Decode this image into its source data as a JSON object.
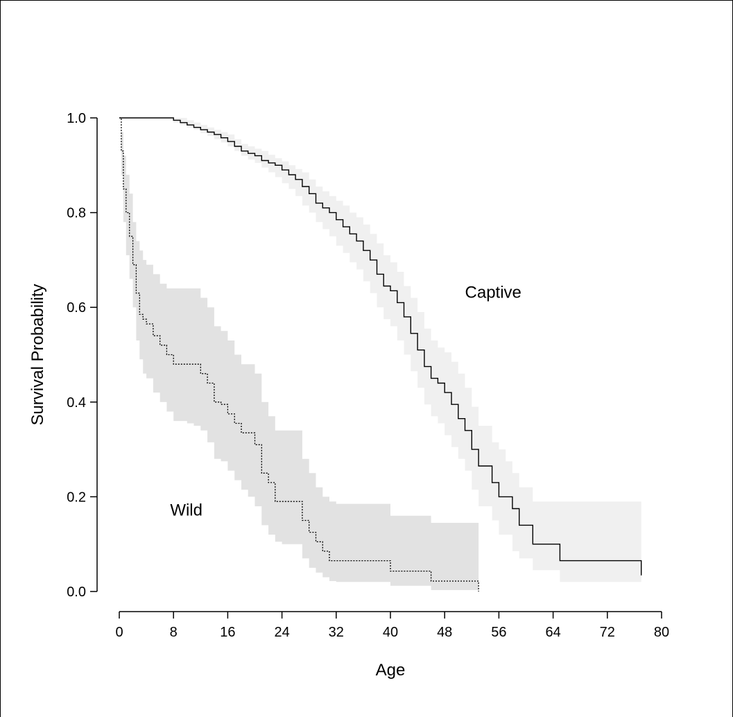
{
  "chart_data": {
    "type": "line",
    "title": "",
    "xlabel": "Age",
    "ylabel": "Survival Probability",
    "xlim": [
      0,
      80
    ],
    "ylim": [
      0,
      1
    ],
    "x_ticks": [
      "0",
      "8",
      "16",
      "24",
      "32",
      "40",
      "48",
      "56",
      "64",
      "72",
      "80"
    ],
    "y_ticks": [
      "0.0",
      "0.2",
      "0.4",
      "0.6",
      "0.8",
      "1.0"
    ],
    "grid": false,
    "annotations": [
      {
        "text": "Captive",
        "series": "Captive",
        "x": 51,
        "y": 0.62
      },
      {
        "text": "Wild",
        "series": "Wild",
        "x": 7.5,
        "y": 0.16
      }
    ],
    "series": [
      {
        "name": "Captive",
        "line_style": "solid",
        "line_color": "#000000",
        "band_color": "#f0f0f0",
        "x": [
          0,
          7,
          8,
          9,
          10,
          11,
          12,
          13,
          14,
          15,
          16,
          17,
          18,
          19,
          20,
          21,
          22,
          23,
          24,
          25,
          26,
          27,
          28,
          29,
          30,
          31,
          32,
          33,
          34,
          35,
          36,
          37,
          38,
          39,
          40,
          41,
          42,
          43,
          44,
          45,
          46,
          47,
          48,
          49,
          50,
          51,
          52,
          53,
          54,
          55,
          56,
          57,
          58,
          59,
          61,
          65,
          77
        ],
        "y": [
          1.0,
          1.0,
          0.995,
          0.99,
          0.985,
          0.98,
          0.975,
          0.97,
          0.965,
          0.958,
          0.95,
          0.94,
          0.93,
          0.925,
          0.92,
          0.91,
          0.905,
          0.9,
          0.89,
          0.88,
          0.87,
          0.855,
          0.84,
          0.82,
          0.81,
          0.8,
          0.785,
          0.77,
          0.755,
          0.74,
          0.72,
          0.7,
          0.67,
          0.645,
          0.635,
          0.61,
          0.58,
          0.545,
          0.51,
          0.475,
          0.45,
          0.44,
          0.42,
          0.395,
          0.365,
          0.34,
          0.3,
          0.265,
          0.265,
          0.23,
          0.2,
          0.2,
          0.175,
          0.14,
          0.1,
          0.065,
          0.034
        ],
        "lower": [
          1.0,
          1.0,
          0.99,
          0.985,
          0.98,
          0.975,
          0.968,
          0.962,
          0.955,
          0.948,
          0.94,
          0.93,
          0.92,
          0.912,
          0.905,
          0.895,
          0.885,
          0.875,
          0.862,
          0.85,
          0.835,
          0.815,
          0.8,
          0.78,
          0.765,
          0.75,
          0.73,
          0.715,
          0.695,
          0.68,
          0.655,
          0.63,
          0.6,
          0.575,
          0.56,
          0.53,
          0.5,
          0.465,
          0.43,
          0.395,
          0.37,
          0.355,
          0.33,
          0.305,
          0.28,
          0.255,
          0.215,
          0.18,
          0.18,
          0.15,
          0.12,
          0.12,
          0.085,
          0.07,
          0.045,
          0.02,
          0.005
        ],
        "upper": [
          1.0,
          1.0,
          1.0,
          1.0,
          0.995,
          0.99,
          0.985,
          0.98,
          0.975,
          0.97,
          0.965,
          0.955,
          0.945,
          0.94,
          0.935,
          0.93,
          0.922,
          0.915,
          0.908,
          0.9,
          0.892,
          0.885,
          0.87,
          0.855,
          0.845,
          0.835,
          0.825,
          0.815,
          0.8,
          0.79,
          0.775,
          0.755,
          0.735,
          0.71,
          0.695,
          0.675,
          0.645,
          0.62,
          0.59,
          0.555,
          0.53,
          0.515,
          0.505,
          0.485,
          0.46,
          0.43,
          0.39,
          0.35,
          0.35,
          0.315,
          0.3,
          0.275,
          0.25,
          0.22,
          0.19,
          0.19,
          0.19
        ]
      },
      {
        "name": "Wild",
        "line_style": "dotted",
        "line_color": "#000000",
        "band_color": "#e2e2e2",
        "x": [
          0,
          0.3,
          0.6,
          1,
          1.5,
          2,
          2.5,
          3,
          3.5,
          4,
          5,
          6,
          7,
          8,
          9,
          10,
          11,
          12,
          13,
          14,
          15,
          16,
          17,
          18,
          19,
          20,
          21,
          22,
          23,
          24,
          25,
          26,
          27,
          28,
          29,
          30,
          31,
          32,
          40,
          46,
          53
        ],
        "y": [
          1.0,
          0.93,
          0.85,
          0.8,
          0.75,
          0.69,
          0.63,
          0.585,
          0.575,
          0.565,
          0.54,
          0.52,
          0.5,
          0.48,
          0.48,
          0.48,
          0.48,
          0.46,
          0.44,
          0.4,
          0.395,
          0.375,
          0.355,
          0.335,
          0.335,
          0.31,
          0.25,
          0.23,
          0.19,
          0.19,
          0.19,
          0.19,
          0.15,
          0.125,
          0.105,
          0.085,
          0.065,
          0.065,
          0.043,
          0.022,
          0.0
        ],
        "lower": [
          1.0,
          0.88,
          0.78,
          0.71,
          0.66,
          0.6,
          0.53,
          0.49,
          0.46,
          0.45,
          0.42,
          0.4,
          0.38,
          0.36,
          0.36,
          0.355,
          0.35,
          0.34,
          0.315,
          0.28,
          0.275,
          0.255,
          0.235,
          0.215,
          0.2,
          0.18,
          0.14,
          0.12,
          0.105,
          0.1,
          0.1,
          0.1,
          0.07,
          0.05,
          0.04,
          0.03,
          0.022,
          0.02,
          0.012,
          0.003,
          0.0
        ],
        "upper": [
          1.0,
          0.97,
          0.92,
          0.88,
          0.84,
          0.78,
          0.74,
          0.72,
          0.7,
          0.69,
          0.67,
          0.65,
          0.64,
          0.64,
          0.64,
          0.64,
          0.64,
          0.62,
          0.6,
          0.56,
          0.55,
          0.53,
          0.5,
          0.48,
          0.48,
          0.46,
          0.4,
          0.37,
          0.34,
          0.34,
          0.34,
          0.34,
          0.28,
          0.25,
          0.22,
          0.2,
          0.19,
          0.185,
          0.16,
          0.145,
          0.14
        ]
      }
    ]
  }
}
